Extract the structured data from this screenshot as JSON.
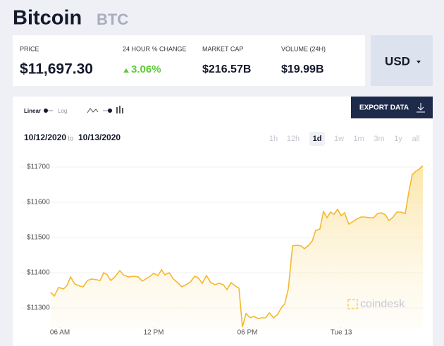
{
  "header": {
    "title": "Bitcoin",
    "symbol": "BTC"
  },
  "stats": [
    {
      "label": "PRICE",
      "value": "$11,697.30"
    },
    {
      "label": "24 HOUR % CHANGE",
      "value": "3.06%"
    },
    {
      "label": "MARKET CAP",
      "value": "$216.57B"
    },
    {
      "label": "VOLUME (24H)",
      "value": "$19.99B"
    }
  ],
  "currency": "USD",
  "controls": {
    "scale_options": [
      "Linear",
      "Log"
    ],
    "export": "EXPORT DATA",
    "date_from": "10/12/2020",
    "date_separator": "to",
    "date_to": "10/13/2020",
    "ranges": [
      "1h",
      "12h",
      "1d",
      "1w",
      "1m",
      "3m",
      "1y",
      "all"
    ],
    "selected_range": 2
  },
  "chart_data": {
    "type": "line",
    "color": "#f5b82e",
    "x": [
      5.41,
      5.64,
      5.91,
      6.23,
      6.45,
      6.68,
      6.95,
      7.26,
      7.49,
      7.76,
      8.03,
      8.35,
      8.57,
      8.8,
      9.02,
      9.25,
      9.52,
      9.83,
      10.06,
      10.37,
      10.69,
      11.01,
      11.28,
      11.55,
      11.77,
      12.0,
      12.27,
      12.5,
      12.72,
      12.99,
      13.26,
      13.53,
      13.8,
      14.07,
      14.35,
      14.62,
      14.84,
      15.11,
      15.38,
      15.65,
      15.92,
      16.19,
      16.46,
      16.69,
      16.96,
      17.23,
      17.46,
      17.68,
      17.91,
      18.18,
      18.41,
      18.68,
      18.9,
      19.17,
      19.4,
      19.67,
      19.94,
      20.16,
      20.39,
      20.62,
      20.89,
      21.16,
      21.43,
      21.65,
      21.92,
      22.15,
      22.37,
      22.64,
      22.87,
      23.09,
      23.32,
      23.54,
      23.77,
      24.0,
      24.22,
      24.49,
      24.72,
      24.99,
      25.26,
      25.53,
      25.8,
      26.07,
      26.34,
      26.57,
      26.84,
      27.06,
      27.33,
      27.56,
      27.83,
      28.1,
      28.32,
      28.55,
      28.78,
      29.0,
      29.23
    ],
    "values": [
      11344,
      11334,
      11358,
      11354,
      11364,
      11388,
      11368,
      11362,
      11360,
      11378,
      11382,
      11380,
      11378,
      11400,
      11394,
      11378,
      11388,
      11406,
      11394,
      11388,
      11390,
      11388,
      11376,
      11384,
      11390,
      11398,
      11392,
      11408,
      11394,
      11400,
      11382,
      11372,
      11360,
      11366,
      11374,
      11390,
      11386,
      11370,
      11392,
      11372,
      11366,
      11370,
      11366,
      11352,
      11372,
      11362,
      11356,
      11246,
      11284,
      11272,
      11276,
      11270,
      11272,
      11272,
      11286,
      11272,
      11282,
      11300,
      11312,
      11354,
      11476,
      11478,
      11476,
      11468,
      11478,
      11490,
      11520,
      11524,
      11574,
      11556,
      11572,
      11566,
      11580,
      11562,
      11570,
      11538,
      11544,
      11552,
      11558,
      11558,
      11556,
      11556,
      11568,
      11570,
      11564,
      11548,
      11558,
      11572,
      11572,
      11568,
      11626,
      11678,
      11688,
      11694,
      11704
    ],
    "xlim": [
      5.41,
      29.23
    ],
    "ylim": [
      11240,
      11734
    ],
    "yticks": [
      {
        "value": 11700,
        "label": "$11700"
      },
      {
        "value": 11600,
        "label": "$11600"
      },
      {
        "value": 11500,
        "label": "$11500"
      },
      {
        "value": 11400,
        "label": "$11400"
      },
      {
        "value": 11300,
        "label": "$11300"
      }
    ],
    "xticks": [
      {
        "value": 6,
        "label": "06 AM"
      },
      {
        "value": 12,
        "label": "12 PM"
      },
      {
        "value": 18,
        "label": "06 PM"
      },
      {
        "value": 24,
        "label": "Tue 13"
      }
    ],
    "grid": true,
    "watermark": "coindesk"
  }
}
